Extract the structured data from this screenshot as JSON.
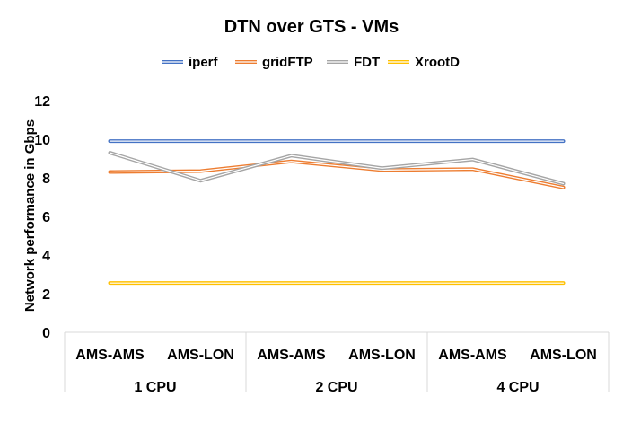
{
  "chart_data": {
    "type": "line",
    "title": "DTN over GTS - VMs",
    "ylabel": "Network performance in Gbps",
    "xlabel": "",
    "ylim": [
      0,
      12
    ],
    "yticks": [
      0,
      2,
      4,
      6,
      8,
      10,
      12
    ],
    "grid": false,
    "legend_position": "top",
    "categories": [
      "AMS-AMS",
      "AMS-LON",
      "AMS-AMS",
      "AMS-LON",
      "AMS-AMS",
      "AMS-LON"
    ],
    "groups": [
      {
        "label": "1 CPU",
        "span": 2
      },
      {
        "label": "2 CPU",
        "span": 2
      },
      {
        "label": "4 CPU",
        "span": 2
      }
    ],
    "series": [
      {
        "name": "iperf",
        "color": "#4472C4",
        "values": [
          9.9,
          9.9,
          9.9,
          9.9,
          9.9,
          9.9
        ]
      },
      {
        "name": "gridFTP",
        "color": "#ED7D31",
        "values": [
          8.3,
          8.35,
          8.85,
          8.4,
          8.45,
          7.5
        ]
      },
      {
        "name": "FDT",
        "color": "#A5A5A5",
        "values": [
          9.3,
          7.85,
          9.15,
          8.5,
          8.95,
          7.7
        ]
      },
      {
        "name": "XrootD",
        "color": "#FFC000",
        "values": [
          2.55,
          2.55,
          2.55,
          2.55,
          2.55,
          2.55
        ]
      }
    ]
  }
}
